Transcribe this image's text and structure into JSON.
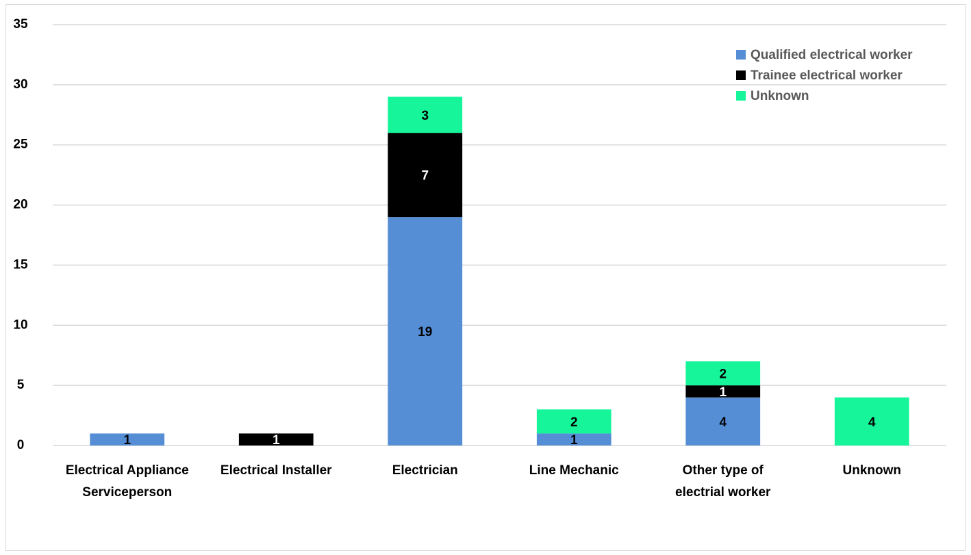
{
  "chart_data": {
    "type": "stacked_bar",
    "categories": [
      [
        "Electrical Appliance",
        "Serviceperson"
      ],
      "Electrical Installer",
      "Electrician",
      "Line Mechanic",
      [
        "Other type of",
        "electrial worker"
      ],
      "Unknown"
    ],
    "series": [
      {
        "name": "Qualified electrical worker",
        "color": "#558ed5",
        "values": [
          1,
          null,
          19,
          1,
          4,
          null
        ]
      },
      {
        "name": "Trainee electrical worker",
        "color": "#000000",
        "values": [
          null,
          1,
          7,
          null,
          1,
          null
        ]
      },
      {
        "name": "Unknown",
        "color": "#17f59b",
        "values": [
          null,
          null,
          3,
          2,
          2,
          4
        ]
      }
    ],
    "ylim": [
      0,
      35
    ],
    "yticks": [
      0,
      5,
      10,
      15,
      20,
      25,
      30,
      35
    ],
    "grid": true,
    "legend": "top-right"
  }
}
